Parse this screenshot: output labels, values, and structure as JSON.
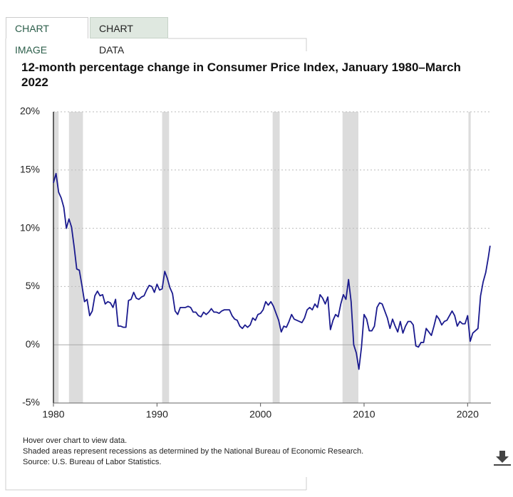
{
  "tabs": [
    "CHART IMAGE",
    "CHART DATA"
  ],
  "chart_data": {
    "type": "line",
    "title": "12-month percentage change in Consumer Price Index, January 1980–March 2022",
    "notes": [
      "Hover over chart to view data.",
      "Shaded areas represent recessions as determined by the National Bureau of Economic Research.",
      "Source: U.S. Bureau of Labor Statistics."
    ],
    "color": "#1a1a8e",
    "recession_color": "#dcdcdc",
    "recessions": [
      [
        1980.0,
        1980.5
      ],
      [
        1981.5,
        1982.85
      ],
      [
        1990.5,
        1991.17
      ],
      [
        2001.17,
        2001.85
      ],
      [
        2007.92,
        2009.45
      ],
      [
        2020.08,
        2020.3
      ]
    ],
    "x": [
      1980,
      1980.25,
      1980.5,
      1980.75,
      1981,
      1981.25,
      1981.5,
      1981.75,
      1982,
      1982.25,
      1982.5,
      1982.75,
      1983,
      1983.25,
      1983.5,
      1983.75,
      1984,
      1984.25,
      1984.5,
      1984.75,
      1985,
      1985.25,
      1985.5,
      1985.75,
      1986,
      1986.25,
      1986.5,
      1986.75,
      1987,
      1987.25,
      1987.5,
      1987.75,
      1988,
      1988.25,
      1988.5,
      1988.75,
      1989,
      1989.25,
      1989.5,
      1989.75,
      1990,
      1990.25,
      1990.5,
      1990.75,
      1991,
      1991.25,
      1991.5,
      1991.75,
      1992,
      1992.25,
      1992.5,
      1992.75,
      1993,
      1993.25,
      1993.5,
      1993.75,
      1994,
      1994.25,
      1994.5,
      1994.75,
      1995,
      1995.25,
      1995.5,
      1995.75,
      1996,
      1996.25,
      1996.5,
      1996.75,
      1997,
      1997.25,
      1997.5,
      1997.75,
      1998,
      1998.25,
      1998.5,
      1998.75,
      1999,
      1999.25,
      1999.5,
      1999.75,
      2000,
      2000.25,
      2000.5,
      2000.75,
      2001,
      2001.25,
      2001.5,
      2001.75,
      2002,
      2002.25,
      2002.5,
      2002.75,
      2003,
      2003.25,
      2003.5,
      2003.75,
      2004,
      2004.25,
      2004.5,
      2004.75,
      2005,
      2005.25,
      2005.5,
      2005.75,
      2006,
      2006.25,
      2006.5,
      2006.75,
      2007,
      2007.25,
      2007.5,
      2007.75,
      2008,
      2008.25,
      2008.5,
      2008.75,
      2009,
      2009.25,
      2009.5,
      2009.75,
      2010,
      2010.25,
      2010.5,
      2010.75,
      2011,
      2011.25,
      2011.5,
      2011.75,
      2012,
      2012.25,
      2012.5,
      2012.75,
      2013,
      2013.25,
      2013.5,
      2013.75,
      2014,
      2014.25,
      2014.5,
      2014.75,
      2015,
      2015.25,
      2015.5,
      2015.75,
      2016,
      2016.25,
      2016.5,
      2016.75,
      2017,
      2017.25,
      2017.5,
      2017.75,
      2018,
      2018.25,
      2018.5,
      2018.75,
      2019,
      2019.25,
      2019.5,
      2019.75,
      2020,
      2020.25,
      2020.5,
      2020.75,
      2021,
      2021.25,
      2021.5,
      2021.75,
      2022,
      2022.17
    ],
    "values": [
      13.9,
      14.7,
      13.1,
      12.6,
      11.8,
      10.0,
      10.8,
      10.1,
      8.4,
      6.5,
      6.4,
      5.1,
      3.7,
      3.9,
      2.5,
      2.9,
      4.2,
      4.6,
      4.2,
      4.3,
      3.5,
      3.7,
      3.6,
      3.2,
      3.9,
      1.6,
      1.6,
      1.5,
      1.5,
      3.8,
      3.9,
      4.5,
      4.0,
      3.9,
      4.1,
      4.2,
      4.7,
      5.1,
      5.0,
      4.5,
      5.2,
      4.7,
      4.8,
      6.3,
      5.7,
      4.9,
      4.4,
      2.9,
      2.6,
      3.2,
      3.2,
      3.2,
      3.3,
      3.2,
      2.8,
      2.8,
      2.5,
      2.4,
      2.8,
      2.6,
      2.8,
      3.1,
      2.8,
      2.8,
      2.7,
      2.9,
      3.0,
      3.0,
      3.0,
      2.5,
      2.2,
      2.1,
      1.6,
      1.4,
      1.7,
      1.5,
      1.7,
      2.3,
      2.1,
      2.6,
      2.7,
      3.0,
      3.7,
      3.4,
      3.7,
      3.3,
      2.7,
      2.1,
      1.1,
      1.6,
      1.5,
      2.0,
      2.6,
      2.2,
      2.1,
      2.0,
      1.9,
      2.3,
      3.0,
      3.2,
      3.0,
      3.5,
      3.2,
      4.3,
      4.0,
      3.5,
      4.1,
      1.3,
      2.1,
      2.6,
      2.4,
      3.5,
      4.3,
      3.9,
      5.6,
      3.7,
      0.0,
      -0.7,
      -2.1,
      -0.2,
      2.6,
      2.2,
      1.2,
      1.2,
      1.6,
      3.2,
      3.6,
      3.5,
      2.9,
      2.3,
      1.4,
      2.2,
      1.6,
      1.1,
      2.0,
      1.0,
      1.6,
      2.0,
      2.0,
      1.7,
      -0.1,
      -0.2,
      0.2,
      0.2,
      1.4,
      1.1,
      0.8,
      1.6,
      2.5,
      2.2,
      1.7,
      2.0,
      2.1,
      2.5,
      2.9,
      2.5,
      1.6,
      2.0,
      1.8,
      1.8,
      2.5,
      0.3,
      1.0,
      1.2,
      1.4,
      4.2,
      5.4,
      6.2,
      7.5,
      8.5
    ],
    "xlim": [
      1980,
      2022.25
    ],
    "xticks": [
      1980,
      1990,
      2000,
      2010,
      2020
    ],
    "ylim": [
      -5,
      20
    ],
    "yticks": [
      {
        "value": -5,
        "label": "-5%"
      },
      {
        "value": 0,
        "label": "0%"
      },
      {
        "value": 5,
        "label": "5%"
      },
      {
        "value": 10,
        "label": "10%"
      },
      {
        "value": 15,
        "label": "15%"
      },
      {
        "value": 20,
        "label": "20%"
      }
    ],
    "grid": true
  }
}
